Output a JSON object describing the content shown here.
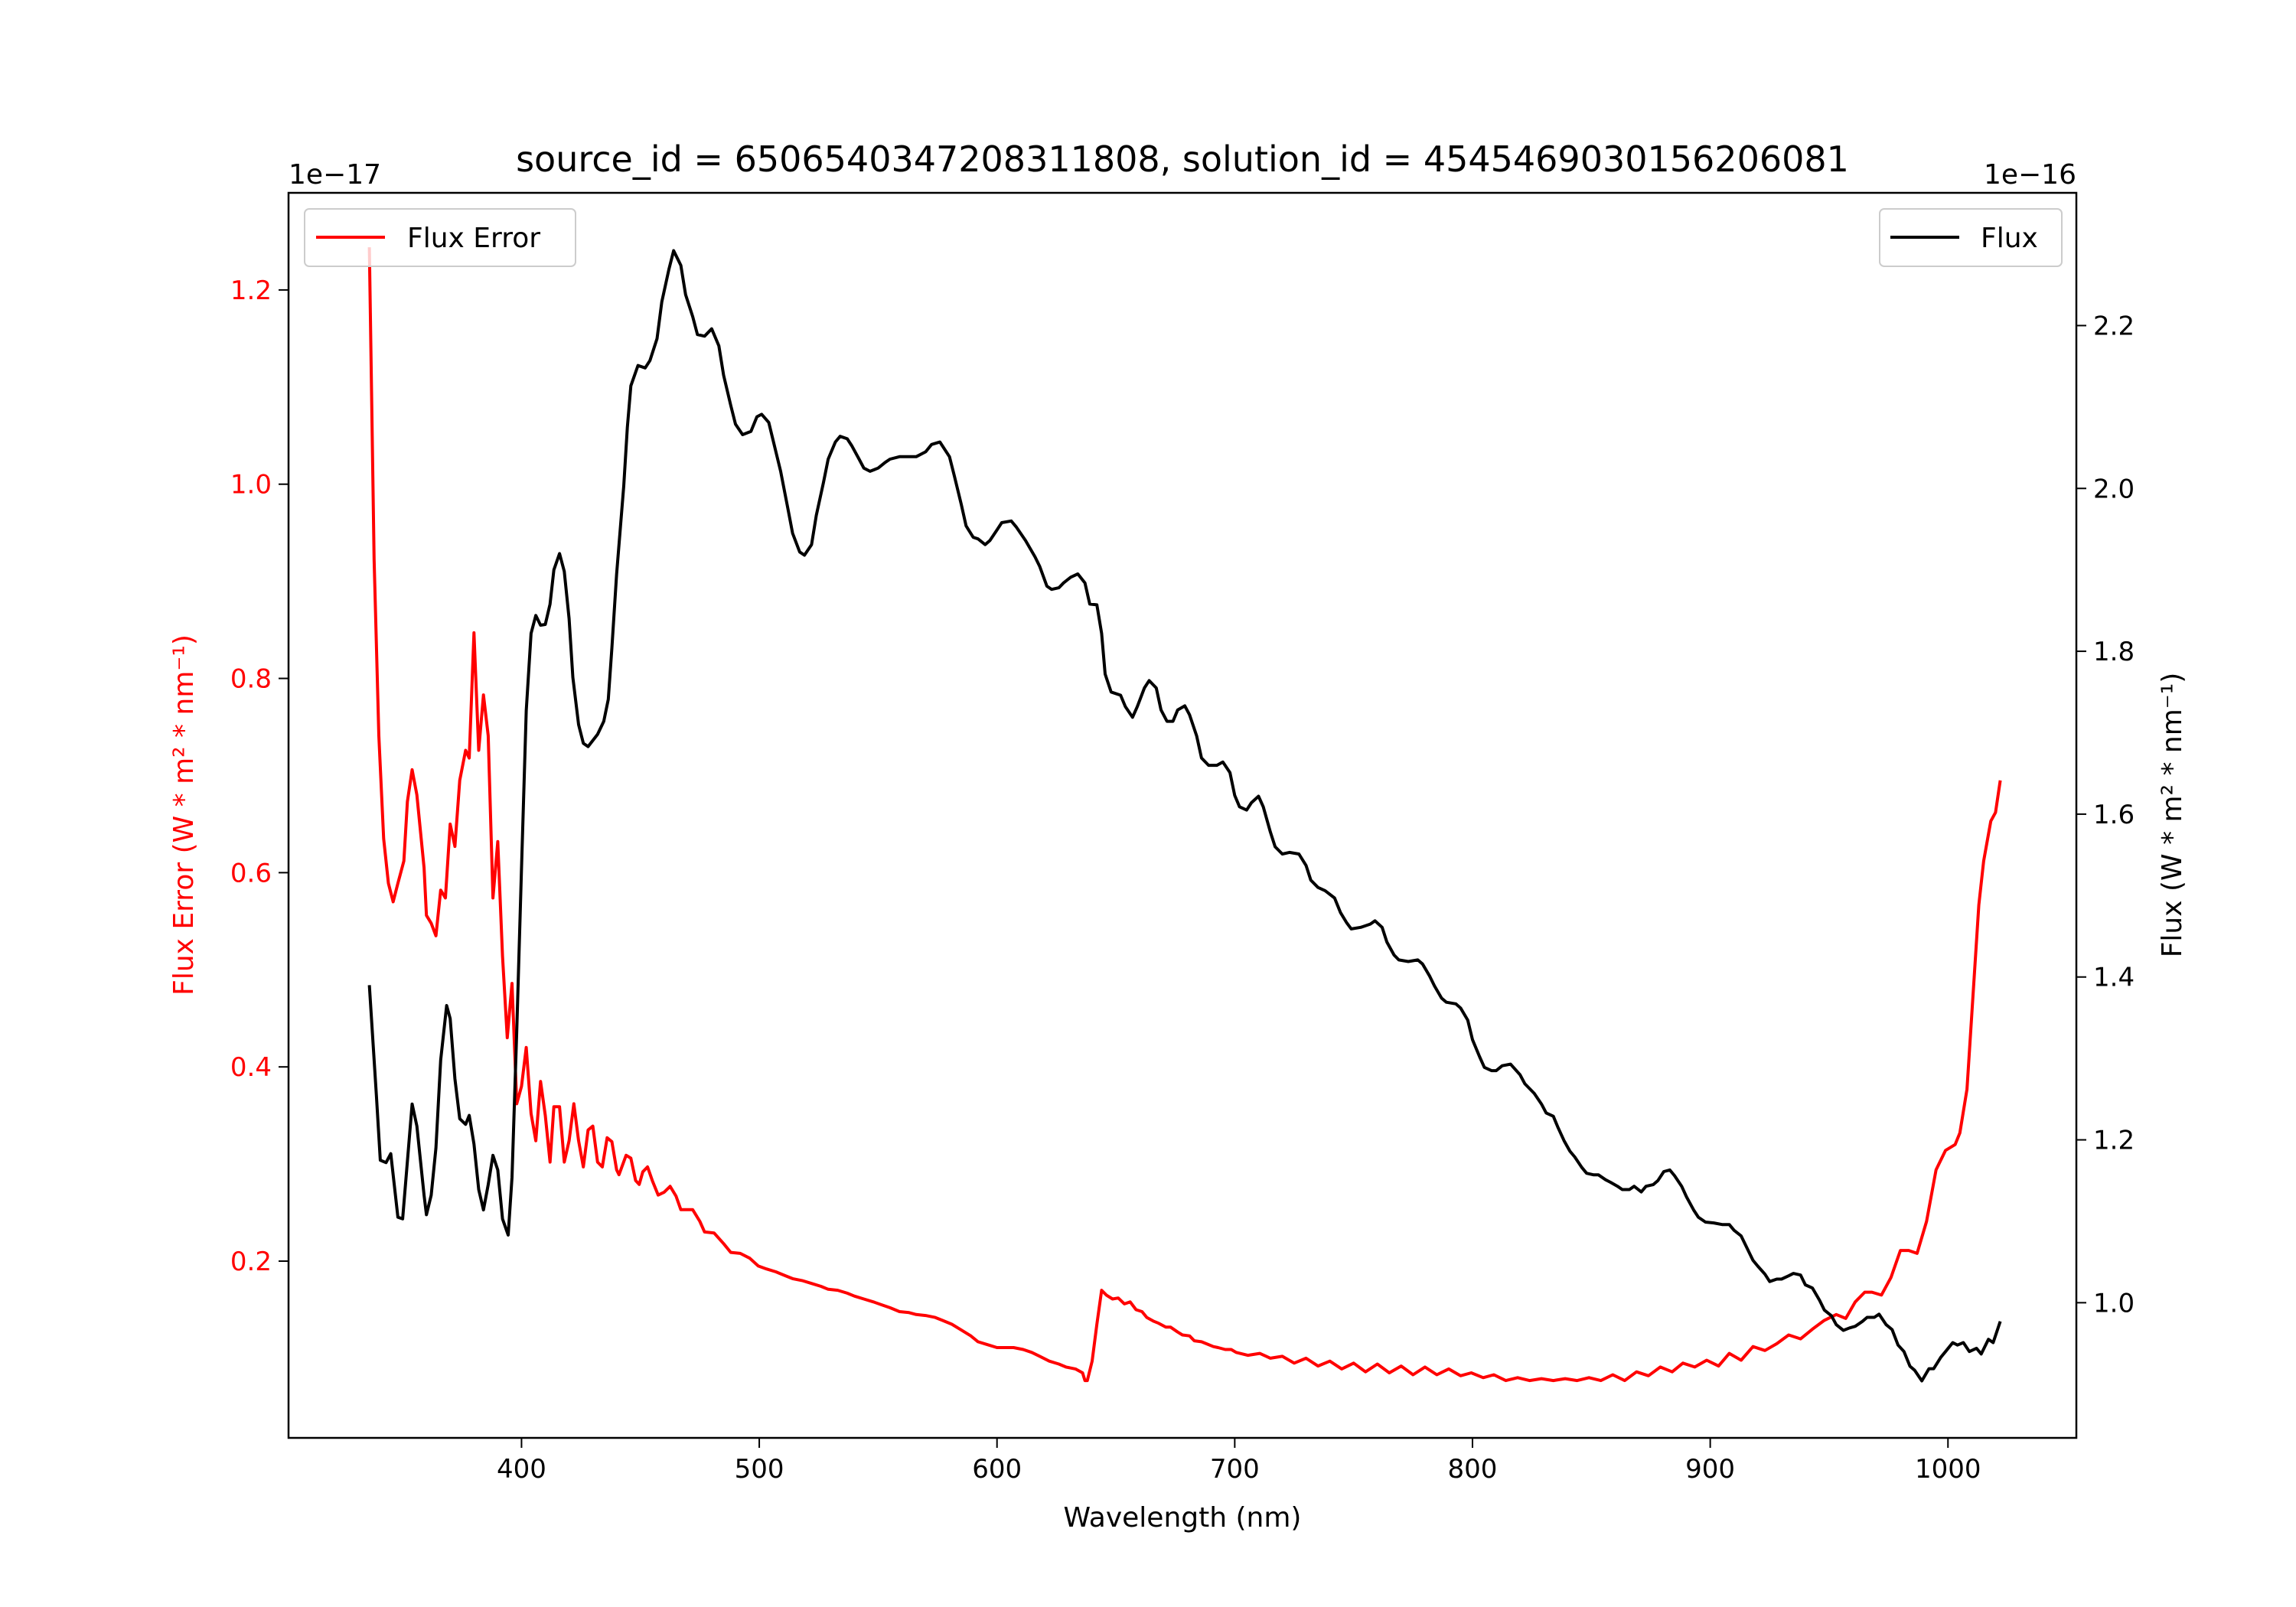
{
  "chart_data": {
    "type": "line",
    "title": "source_id = 6506540347208311808, solution_id = 4545469030156206081",
    "xlabel": "Wavelength (nm)",
    "xlim": [
      302,
      1054
    ],
    "xticks": [
      400,
      500,
      600,
      700,
      800,
      900,
      1000
    ],
    "left_axis": {
      "label": "Flux Error (W * m² * nm⁻¹)",
      "offset_text": "1e−17",
      "ylim": [
        0.018,
        1.3
      ],
      "ticks": [
        0.2,
        0.4,
        0.6,
        0.8,
        1.0,
        1.2
      ],
      "tick_labels": [
        "0.2",
        "0.4",
        "0.6",
        "0.8",
        "1.0",
        "1.2"
      ],
      "color": "#ff0000"
    },
    "right_axis": {
      "label": "Flux (W * m² * nm⁻¹)",
      "offset_text": "1e−16",
      "ylim": [
        0.834,
        2.363
      ],
      "ticks": [
        1.0,
        1.2,
        1.4,
        1.6,
        1.8,
        2.0,
        2.2
      ],
      "tick_labels": [
        "1.0",
        "1.2",
        "1.4",
        "1.6",
        "1.8",
        "2.0",
        "2.2"
      ],
      "color": "#000000"
    },
    "legends": [
      {
        "label": "Flux Error",
        "color": "#ff0000",
        "placement": "upper-left"
      },
      {
        "label": "Flux",
        "color": "#000000",
        "placement": "upper-right"
      }
    ],
    "series": [
      {
        "name": "Flux Error",
        "axis": "left",
        "color": "#ff0000",
        "x": [
          336,
          338,
          340,
          342,
          344,
          346,
          348,
          350.5,
          352,
          354,
          356,
          359,
          360,
          362,
          364,
          366,
          368,
          370,
          372,
          374,
          376.5,
          378,
          380,
          382,
          384,
          386,
          388,
          390,
          392,
          394,
          396,
          398,
          400,
          402,
          404,
          406,
          408,
          410,
          412,
          413.6,
          416,
          418,
          420,
          422,
          424,
          426,
          428,
          430,
          432,
          434,
          436,
          438,
          440,
          441,
          444,
          446,
          448,
          449.5,
          451,
          453,
          455,
          457.5,
          460,
          462.5,
          465,
          467,
          470,
          472,
          475,
          477,
          481,
          485,
          488,
          492,
          496,
          499.6,
          503,
          507,
          511,
          514,
          518,
          522,
          526,
          529,
          533,
          537,
          540,
          544,
          548,
          551.5,
          555,
          559,
          563,
          566,
          570,
          574,
          577,
          581,
          585,
          589,
          592,
          596,
          600,
          603,
          607,
          611,
          614.6,
          618,
          622,
          626,
          629,
          633,
          636,
          637,
          638,
          640,
          642,
          644,
          646,
          648.6,
          651,
          653.6,
          656,
          658.5,
          661,
          663,
          666,
          668,
          671,
          673,
          676,
          678,
          681,
          683,
          686,
          688,
          691,
          693,
          696,
          698.5,
          700.6,
          705.5,
          710.5,
          715,
          720,
          725,
          730,
          735,
          740,
          745,
          750,
          755,
          760,
          765,
          770,
          775,
          780,
          785,
          790,
          795,
          799.5,
          804.5,
          809,
          814,
          819,
          824,
          829,
          834,
          839,
          844,
          849,
          854,
          859,
          864,
          869,
          874,
          879,
          884,
          888.5,
          893.5,
          898.5,
          903.5,
          908,
          913,
          918,
          923,
          928,
          933,
          938,
          943,
          948,
          953,
          957,
          961,
          965,
          968,
          972,
          976,
          980,
          983.5,
          987,
          991,
          995,
          999,
          1003,
          1005,
          1008,
          1010,
          1013,
          1015,
          1018,
          1020,
          1022
        ],
        "y": [
          1.244,
          0.923,
          0.741,
          0.635,
          0.589,
          0.57,
          0.589,
          0.612,
          0.673,
          0.706,
          0.68,
          0.605,
          0.556,
          0.548,
          0.535,
          0.582,
          0.574,
          0.65,
          0.627,
          0.695,
          0.726,
          0.718,
          0.847,
          0.726,
          0.783,
          0.741,
          0.574,
          0.632,
          0.514,
          0.43,
          0.486,
          0.362,
          0.38,
          0.42,
          0.352,
          0.324,
          0.385,
          0.35,
          0.302,
          0.359,
          0.359,
          0.302,
          0.324,
          0.362,
          0.324,
          0.297,
          0.335,
          0.339,
          0.302,
          0.297,
          0.327,
          0.323,
          0.294,
          0.289,
          0.309,
          0.306,
          0.283,
          0.279,
          0.292,
          0.297,
          0.283,
          0.268,
          0.271,
          0.277,
          0.267,
          0.253,
          0.253,
          0.253,
          0.241,
          0.23,
          0.229,
          0.218,
          0.209,
          0.208,
          0.203,
          0.195,
          0.192,
          0.189,
          0.185,
          0.182,
          0.18,
          0.177,
          0.174,
          0.171,
          0.17,
          0.167,
          0.164,
          0.161,
          0.158,
          0.155,
          0.152,
          0.148,
          0.147,
          0.145,
          0.144,
          0.142,
          0.139,
          0.135,
          0.129,
          0.123,
          0.117,
          0.114,
          0.111,
          0.111,
          0.111,
          0.109,
          0.106,
          0.102,
          0.097,
          0.094,
          0.091,
          0.089,
          0.085,
          0.077,
          0.077,
          0.097,
          0.135,
          0.17,
          0.165,
          0.161,
          0.162,
          0.156,
          0.158,
          0.15,
          0.148,
          0.142,
          0.138,
          0.136,
          0.132,
          0.132,
          0.127,
          0.124,
          0.123,
          0.118,
          0.117,
          0.115,
          0.112,
          0.111,
          0.109,
          0.109,
          0.106,
          0.103,
          0.105,
          0.1,
          0.102,
          0.095,
          0.1,
          0.092,
          0.097,
          0.089,
          0.095,
          0.086,
          0.094,
          0.085,
          0.092,
          0.083,
          0.091,
          0.083,
          0.089,
          0.082,
          0.085,
          0.08,
          0.083,
          0.077,
          0.08,
          0.077,
          0.079,
          0.077,
          0.079,
          0.077,
          0.08,
          0.077,
          0.083,
          0.077,
          0.086,
          0.082,
          0.091,
          0.086,
          0.095,
          0.091,
          0.098,
          0.092,
          0.105,
          0.098,
          0.112,
          0.108,
          0.115,
          0.124,
          0.12,
          0.13,
          0.139,
          0.145,
          0.141,
          0.158,
          0.168,
          0.168,
          0.165,
          0.183,
          0.211,
          0.211,
          0.208,
          0.241,
          0.294,
          0.314,
          0.32,
          0.332,
          0.377,
          0.453,
          0.567,
          0.612,
          0.653,
          0.662,
          0.695
        ]
      },
      {
        "name": "Flux",
        "axis": "right",
        "color": "#000000",
        "x": [
          336,
          339,
          340.6,
          343,
          345,
          348,
          350,
          354,
          356,
          359,
          360,
          362,
          364,
          366,
          368.5,
          370,
          372,
          374,
          376.5,
          378,
          380,
          382,
          384,
          386,
          388,
          390,
          392,
          394.4,
          396,
          398,
          400,
          402,
          404,
          406,
          408,
          410,
          412,
          413.6,
          416,
          418,
          420,
          421.6,
          424,
          426,
          428,
          432,
          434.6,
          436.5,
          438,
          440,
          443,
          444.5,
          446,
          449,
          452,
          454,
          457,
          459,
          462,
          464,
          467,
          469,
          472,
          474,
          477,
          480,
          483,
          485,
          488,
          490,
          493,
          496.5,
          499,
          501,
          504,
          506,
          509,
          512,
          514,
          517,
          519,
          522,
          524,
          527,
          529,
          532,
          534,
          537,
          539,
          542,
          544,
          546.6,
          550,
          553,
          555,
          559,
          563,
          566,
          570,
          572.5,
          576,
          580,
          582,
          585,
          587,
          590,
          592,
          595,
          597,
          600,
          602,
          606,
          608,
          612,
          616,
          618,
          621,
          623,
          626,
          628,
          631,
          634,
          637,
          639,
          642,
          644,
          645.5,
          648,
          652,
          654,
          657,
          659,
          662,
          664,
          667,
          669,
          671.5,
          674,
          676,
          679,
          681,
          684,
          686,
          689,
          692.5,
          695,
          698,
          700,
          702,
          705,
          707,
          710,
          712,
          715,
          717,
          720,
          723,
          727,
          730,
          732,
          735,
          738,
          742,
          744.5,
          747,
          749,
          753,
          757,
          759,
          762,
          764,
          767,
          769,
          773,
          777,
          779,
          782,
          784,
          787,
          789,
          793,
          795,
          798,
          800,
          803,
          805,
          808,
          810,
          812.5,
          816,
          820,
          822,
          826,
          829,
          831,
          834,
          836,
          838.5,
          841,
          843,
          846,
          848,
          851,
          853,
          856,
          858,
          861,
          863,
          866,
          868,
          871,
          873,
          876,
          878,
          880.5,
          883,
          885,
          888,
          890,
          893,
          895,
          898,
          901.5,
          905,
          908,
          910,
          913,
          915,
          918,
          920,
          923,
          925,
          928,
          930,
          933,
          935,
          938,
          940,
          943,
          946,
          948,
          951,
          953,
          956,
          958.6,
          961,
          964,
          966,
          969,
          971,
          974,
          976.5,
          979,
          981.5,
          984,
          986,
          989,
          992,
          994,
          997,
          999,
          1002,
          1004,
          1006.5,
          1009,
          1012,
          1014,
          1017,
          1019,
          1022
        ],
        "y": [
          1.39,
          1.253,
          1.175,
          1.172,
          1.183,
          1.105,
          1.103,
          1.244,
          1.217,
          1.132,
          1.108,
          1.132,
          1.19,
          1.298,
          1.365,
          1.349,
          1.275,
          1.226,
          1.219,
          1.23,
          1.195,
          1.139,
          1.114,
          1.145,
          1.181,
          1.163,
          1.103,
          1.083,
          1.154,
          1.334,
          1.533,
          1.727,
          1.822,
          1.844,
          1.832,
          1.833,
          1.858,
          1.9,
          1.92,
          1.898,
          1.84,
          1.768,
          1.71,
          1.687,
          1.683,
          1.698,
          1.714,
          1.741,
          1.804,
          1.895,
          2.003,
          2.075,
          2.126,
          2.151,
          2.148,
          2.157,
          2.184,
          2.229,
          2.269,
          2.292,
          2.274,
          2.238,
          2.211,
          2.189,
          2.187,
          2.196,
          2.175,
          2.139,
          2.102,
          2.079,
          2.066,
          2.07,
          2.088,
          2.091,
          2.081,
          2.057,
          2.021,
          1.976,
          1.945,
          1.922,
          1.918,
          1.931,
          1.967,
          2.007,
          2.036,
          2.057,
          2.064,
          2.061,
          2.052,
          2.036,
          2.025,
          2.021,
          2.025,
          2.032,
          2.036,
          2.039,
          2.039,
          2.039,
          2.045,
          2.054,
          2.057,
          2.039,
          2.016,
          1.98,
          1.954,
          1.94,
          1.938,
          1.931,
          1.936,
          1.949,
          1.958,
          1.96,
          1.953,
          1.936,
          1.916,
          1.904,
          1.88,
          1.876,
          1.878,
          1.884,
          1.891,
          1.895,
          1.884,
          1.858,
          1.857,
          1.822,
          1.772,
          1.75,
          1.746,
          1.732,
          1.719,
          1.732,
          1.755,
          1.764,
          1.755,
          1.728,
          1.714,
          1.714,
          1.728,
          1.733,
          1.722,
          1.696,
          1.669,
          1.66,
          1.66,
          1.664,
          1.651,
          1.623,
          1.609,
          1.605,
          1.614,
          1.622,
          1.609,
          1.578,
          1.56,
          1.551,
          1.553,
          1.551,
          1.537,
          1.519,
          1.51,
          1.506,
          1.497,
          1.479,
          1.467,
          1.459,
          1.461,
          1.465,
          1.469,
          1.461,
          1.443,
          1.427,
          1.421,
          1.419,
          1.421,
          1.416,
          1.401,
          1.389,
          1.374,
          1.369,
          1.367,
          1.362,
          1.347,
          1.323,
          1.302,
          1.289,
          1.285,
          1.285,
          1.291,
          1.293,
          1.28,
          1.269,
          1.257,
          1.244,
          1.233,
          1.229,
          1.215,
          1.199,
          1.186,
          1.179,
          1.166,
          1.159,
          1.157,
          1.157,
          1.151,
          1.148,
          1.143,
          1.139,
          1.139,
          1.143,
          1.136,
          1.143,
          1.145,
          1.15,
          1.161,
          1.163,
          1.156,
          1.143,
          1.13,
          1.114,
          1.105,
          1.099,
          1.098,
          1.096,
          1.096,
          1.089,
          1.082,
          1.07,
          1.052,
          1.045,
          1.035,
          1.026,
          1.029,
          1.029,
          1.033,
          1.036,
          1.034,
          1.022,
          1.018,
          1.003,
          0.991,
          0.984,
          0.973,
          0.966,
          0.969,
          0.971,
          0.977,
          0.982,
          0.982,
          0.986,
          0.973,
          0.967,
          0.948,
          0.94,
          0.922,
          0.917,
          0.904,
          0.919,
          0.919,
          0.933,
          0.94,
          0.951,
          0.948,
          0.951,
          0.94,
          0.944,
          0.937,
          0.955,
          0.951,
          0.977
        ]
      }
    ]
  }
}
